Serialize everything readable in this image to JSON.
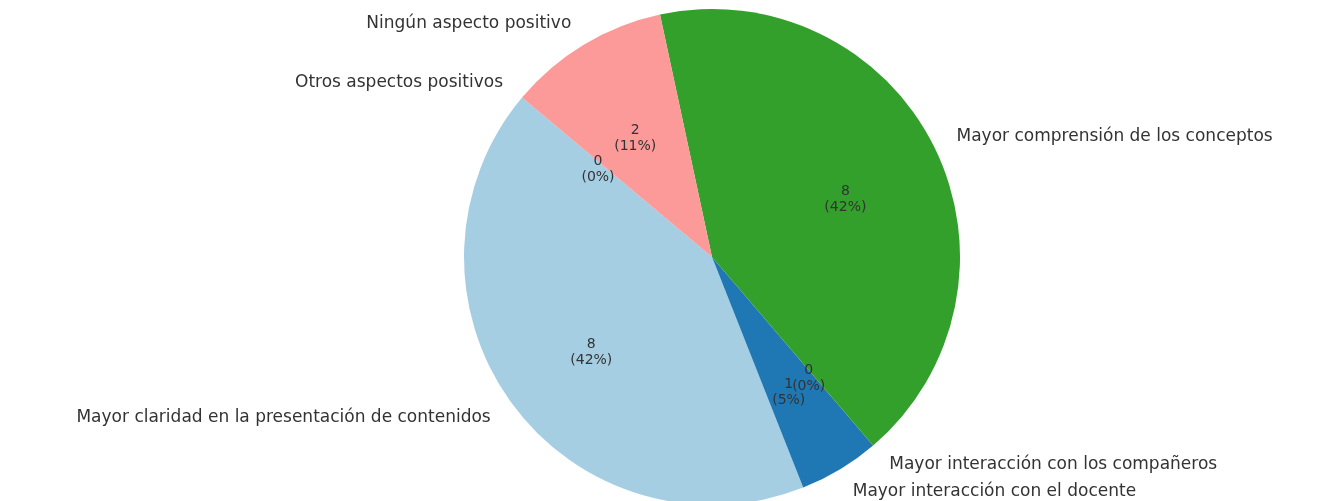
{
  "chart_data": {
    "type": "pie",
    "categories": [
      "Mayor claridad en la presentación de contenidos",
      "Mayor interacción con el docente",
      "Mayor interacción con los compañeros",
      "Mayor comprensión de los conceptos",
      "Ningún aspecto positivo",
      "Otros aspectos positivos"
    ],
    "values": [
      8,
      1,
      0,
      8,
      2,
      0
    ],
    "colors": [
      "#a6cee3",
      "#1f78b4",
      "#b2df8a",
      "#33a02c",
      "#fb9a99",
      "#e31a1c"
    ],
    "value_labels": [
      "8\n(42%)",
      "1\n(5%)",
      "0\n(0%)",
      "8\n(42%)",
      "2\n(11%)",
      "0\n(0%)"
    ]
  }
}
